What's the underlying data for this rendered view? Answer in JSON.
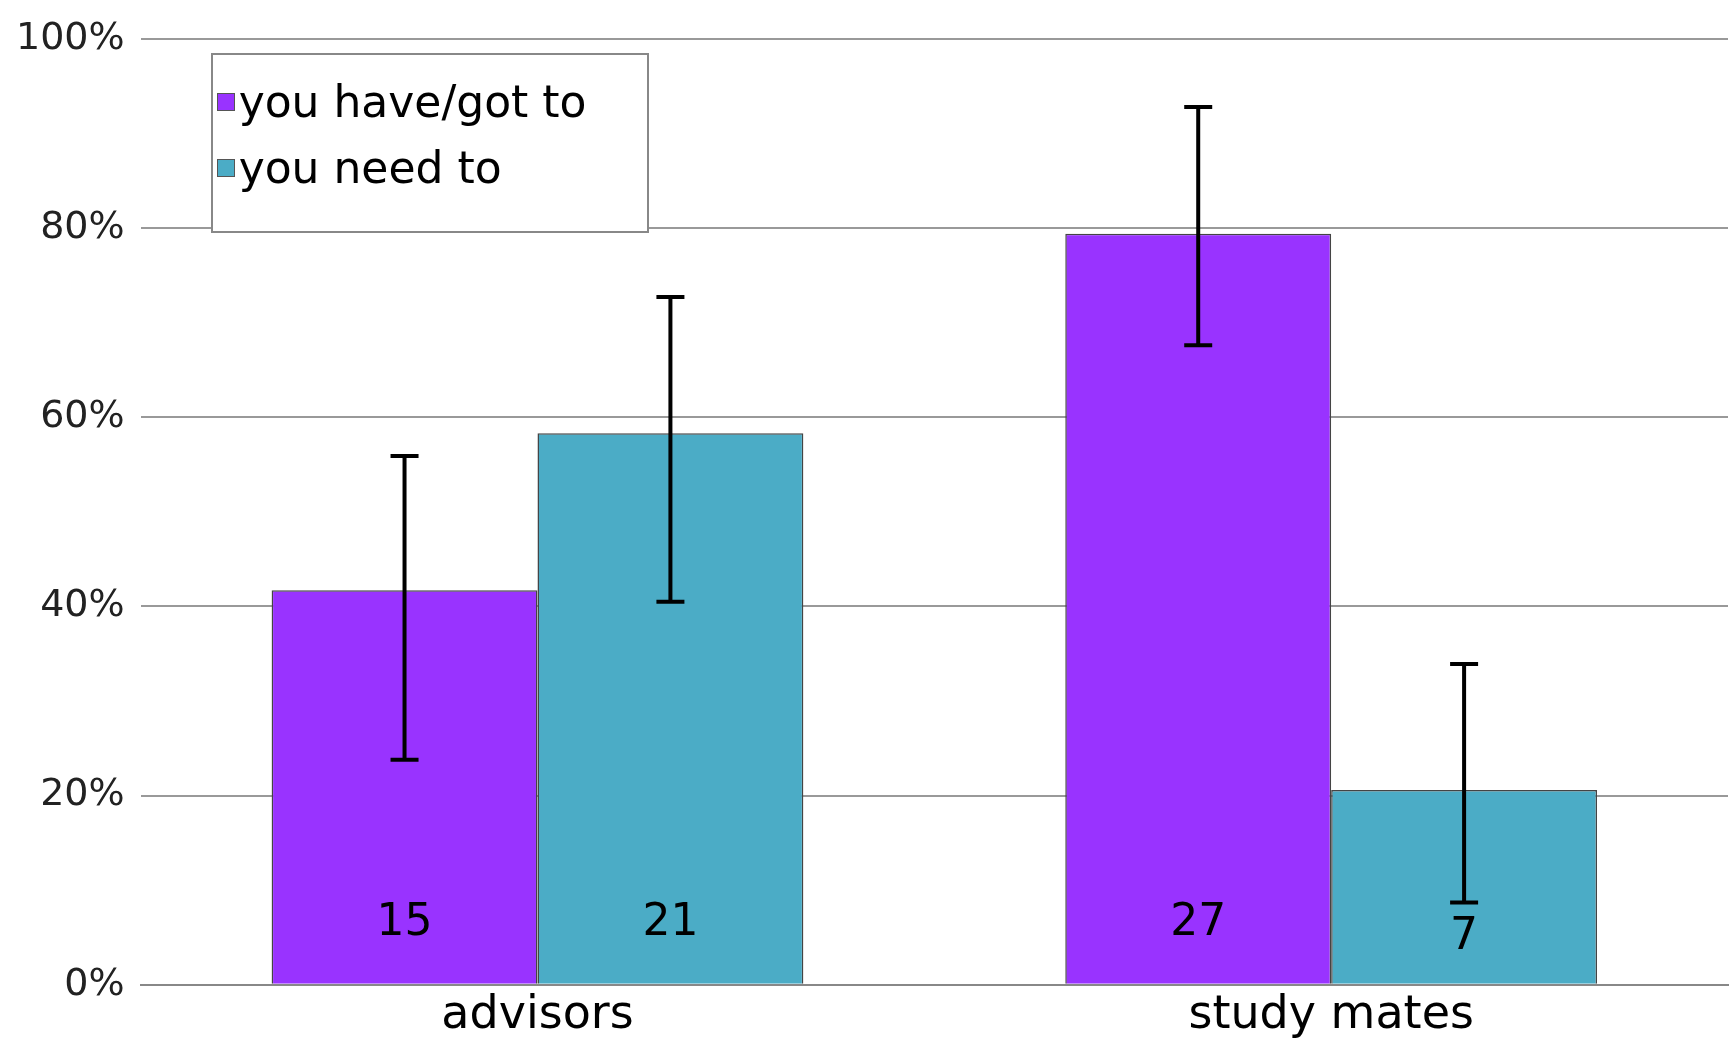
{
  "chart_data": {
    "type": "bar",
    "categories": [
      "advisors",
      "study mates"
    ],
    "series": [
      {
        "name": "you have/got to",
        "color": "#9933ff",
        "values": [
          41.7,
          79.4
        ],
        "errors": [
          [
            23.8,
            55.9
          ],
          [
            67.6,
            92.8
          ]
        ]
      },
      {
        "name": "you need to",
        "color": "#4bacc6",
        "values": [
          58.3,
          20.6
        ],
        "errors": [
          [
            40.5,
            72.7
          ],
          [
            8.7,
            33.9
          ]
        ]
      }
    ],
    "annotations": [
      {
        "text": "15",
        "x": "advisors",
        "y": 6.5
      },
      {
        "text": "21",
        "x": "advisors",
        "y": 6.5
      },
      {
        "text": "27",
        "x": "study mates",
        "y": 6.5
      },
      {
        "text": "7",
        "x": "study mates",
        "y": 5
      }
    ],
    "ylim": [
      0,
      100
    ],
    "yticks": [
      {
        "value": 0,
        "label": "0%"
      },
      {
        "value": 20,
        "label": "20%"
      },
      {
        "value": 40,
        "label": "40%"
      },
      {
        "value": 60,
        "label": "60%"
      },
      {
        "value": 80,
        "label": "80%"
      },
      {
        "value": 100,
        "label": "100%"
      }
    ],
    "grid": "y",
    "legend": "top left"
  }
}
